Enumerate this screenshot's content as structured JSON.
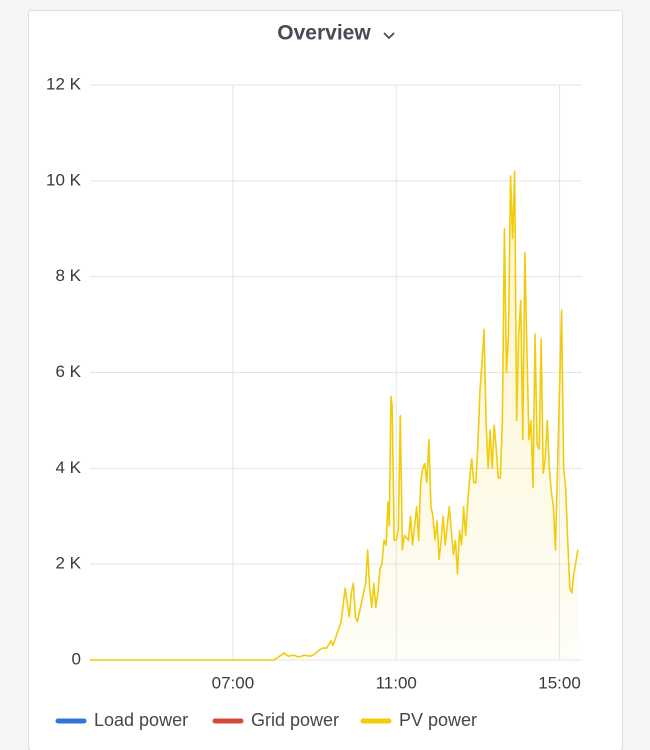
{
  "chart_data": {
    "type": "line",
    "title": "Overview",
    "x": [
      3.5,
      8.0,
      8.1,
      8.25,
      8.35,
      8.5,
      8.6,
      8.75,
      8.9,
      9.0,
      9.1,
      9.2,
      9.3,
      9.4,
      9.45,
      9.55,
      9.65,
      9.75,
      9.8,
      9.85,
      9.9,
      9.95,
      10.0,
      10.05,
      10.1,
      10.15,
      10.2,
      10.25,
      10.3,
      10.35,
      10.4,
      10.45,
      10.5,
      10.55,
      10.6,
      10.65,
      10.7,
      10.75,
      10.8,
      10.83,
      10.87,
      10.9,
      10.95,
      11.0,
      11.05,
      11.1,
      11.15,
      11.2,
      11.3,
      11.35,
      11.4,
      11.45,
      11.5,
      11.55,
      11.6,
      11.65,
      11.7,
      11.75,
      11.8,
      11.85,
      11.9,
      11.95,
      12.0,
      12.05,
      12.1,
      12.15,
      12.2,
      12.25,
      12.3,
      12.35,
      12.4,
      12.45,
      12.5,
      12.55,
      12.6,
      12.65,
      12.7,
      12.75,
      12.8,
      12.85,
      12.9,
      12.95,
      13.0,
      13.05,
      13.1,
      13.15,
      13.2,
      13.25,
      13.3,
      13.35,
      13.4,
      13.45,
      13.5,
      13.55,
      13.6,
      13.65,
      13.7,
      13.75,
      13.8,
      13.85,
      13.9,
      13.95,
      14.0,
      14.05,
      14.1,
      14.15,
      14.2,
      14.25,
      14.3,
      14.35,
      14.4,
      14.45,
      14.5,
      14.55,
      14.6,
      14.65,
      14.7,
      14.75,
      14.8,
      14.85,
      14.9,
      14.95,
      15.05,
      15.1,
      15.15,
      15.2,
      15.25,
      15.3,
      15.35,
      15.45
    ],
    "series": [
      {
        "name": "Load power",
        "color": "#3274d9",
        "values": [
          null,
          null,
          null,
          null,
          null,
          null,
          null,
          null,
          null,
          null,
          null,
          null,
          null,
          null,
          null,
          null,
          null,
          null,
          null,
          null,
          null,
          null,
          null,
          null,
          null,
          null,
          null,
          null,
          null,
          null,
          null,
          null,
          null,
          null,
          null,
          null,
          null,
          null,
          null,
          null,
          null,
          null,
          null,
          null,
          null,
          null,
          null,
          null,
          null,
          null,
          null,
          null,
          null,
          null,
          null,
          null,
          null,
          null,
          null,
          null,
          null,
          null,
          null,
          null,
          null,
          null,
          null,
          null,
          null,
          null,
          null,
          null,
          null,
          null,
          null,
          null,
          null,
          null,
          null,
          null,
          null,
          null,
          null,
          null,
          null,
          null,
          null,
          null,
          null,
          null,
          null,
          null,
          null,
          null,
          null,
          null,
          null,
          null,
          null,
          null,
          null,
          null,
          null,
          null,
          null,
          null,
          null,
          null,
          null,
          null,
          null,
          null,
          null,
          null,
          null,
          null,
          null,
          null,
          null,
          null,
          null,
          null,
          null,
          null,
          null,
          null,
          null,
          null,
          null,
          null
        ]
      },
      {
        "name": "Grid power",
        "color": "#d44a3a",
        "values": [
          null,
          null,
          null,
          null,
          null,
          null,
          null,
          null,
          null,
          null,
          null,
          null,
          null,
          null,
          null,
          null,
          null,
          null,
          null,
          null,
          null,
          null,
          null,
          null,
          null,
          null,
          null,
          null,
          null,
          null,
          null,
          null,
          null,
          null,
          null,
          null,
          null,
          null,
          null,
          null,
          null,
          null,
          null,
          null,
          null,
          null,
          null,
          null,
          null,
          null,
          null,
          null,
          null,
          null,
          null,
          null,
          null,
          null,
          null,
          null,
          null,
          null,
          null,
          null,
          null,
          null,
          null,
          null,
          null,
          null,
          null,
          null,
          null,
          null,
          null,
          null,
          null,
          null,
          null,
          null,
          null,
          null,
          null,
          null,
          null,
          null,
          null,
          null,
          null,
          null,
          null,
          null,
          null,
          null,
          null,
          null,
          null,
          null,
          null,
          null,
          null,
          null,
          null,
          null,
          null,
          null,
          null,
          null,
          null,
          null,
          null,
          null,
          null,
          null,
          null,
          null,
          null,
          null,
          null,
          null,
          null,
          null,
          null,
          null,
          null,
          null,
          null,
          null,
          null,
          null
        ]
      },
      {
        "name": "PV power",
        "color": "#f2cc0c",
        "values": [
          0,
          0,
          50,
          150,
          80,
          100,
          60,
          100,
          80,
          120,
          200,
          250,
          250,
          400,
          300,
          550,
          800,
          1500,
          1200,
          900,
          1400,
          1600,
          900,
          800,
          1000,
          1200,
          1400,
          1600,
          2300,
          1500,
          1100,
          1600,
          1100,
          1400,
          1900,
          2000,
          2500,
          2400,
          3300,
          2800,
          5500,
          5300,
          2500,
          2500,
          2700,
          5100,
          2300,
          2600,
          2500,
          3000,
          2400,
          2800,
          3200,
          2500,
          3700,
          4000,
          4100,
          3700,
          4600,
          3200,
          3000,
          2500,
          2900,
          2100,
          2500,
          3000,
          2400,
          2800,
          3200,
          2700,
          2200,
          2500,
          1800,
          2700,
          2400,
          3200,
          2600,
          3300,
          3800,
          4200,
          3700,
          3700,
          4500,
          5600,
          6200,
          6900,
          5000,
          4000,
          4800,
          4000,
          4900,
          4400,
          3800,
          3800,
          5000,
          9000,
          6000,
          6800,
          10100,
          8800,
          10200,
          5000,
          6800,
          7500,
          4600,
          8500,
          6500,
          4600,
          5000,
          3600,
          6800,
          4500,
          4400,
          6700,
          3900,
          4200,
          5000,
          4000,
          3500,
          3200,
          2300,
          4000,
          7300,
          4000,
          3600,
          2500,
          1500,
          1400,
          1800,
          2300
        ]
      }
    ],
    "xlim": [
      3.5,
      15.55
    ],
    "xticks": [
      {
        "value": 7,
        "label": "07:00"
      },
      {
        "value": 11,
        "label": "11:00"
      },
      {
        "value": 15,
        "label": "15:00"
      }
    ],
    "ylim": [
      0,
      12000
    ],
    "yticks": [
      0,
      {
        "value": 2000,
        "label": "2 K"
      },
      {
        "value": 4000,
        "label": "4 K"
      },
      {
        "value": 6000,
        "label": "6 K"
      },
      {
        "value": 8000,
        "label": "8 K"
      },
      {
        "value": 10000,
        "label": "10 K"
      },
      {
        "value": 12000,
        "label": "12 K"
      }
    ],
    "grid": true
  }
}
